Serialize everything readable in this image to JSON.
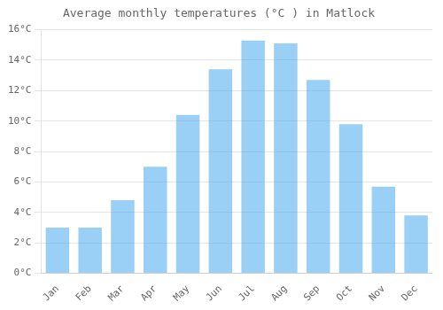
{
  "chart_data": {
    "type": "bar",
    "title": "Average monthly temperatures (°C ) in Matlock",
    "categories": [
      "Jan",
      "Feb",
      "Mar",
      "Apr",
      "May",
      "Jun",
      "Jul",
      "Aug",
      "Sep",
      "Oct",
      "Nov",
      "Dec"
    ],
    "values": [
      3.0,
      3.0,
      4.8,
      7.0,
      10.4,
      13.4,
      15.3,
      15.1,
      12.7,
      9.8,
      5.7,
      3.8
    ],
    "ylim": [
      0,
      16
    ],
    "yticks": [
      {
        "value": 0,
        "label": "0°C"
      },
      {
        "value": 2,
        "label": "2°C"
      },
      {
        "value": 4,
        "label": "4°C"
      },
      {
        "value": 6,
        "label": "6°C"
      },
      {
        "value": 8,
        "label": "8°C"
      },
      {
        "value": 10,
        "label": "10°C"
      },
      {
        "value": 12,
        "label": "12°C"
      },
      {
        "value": 14,
        "label": "14°C"
      },
      {
        "value": 16,
        "label": "16°C"
      }
    ],
    "grid": true
  }
}
